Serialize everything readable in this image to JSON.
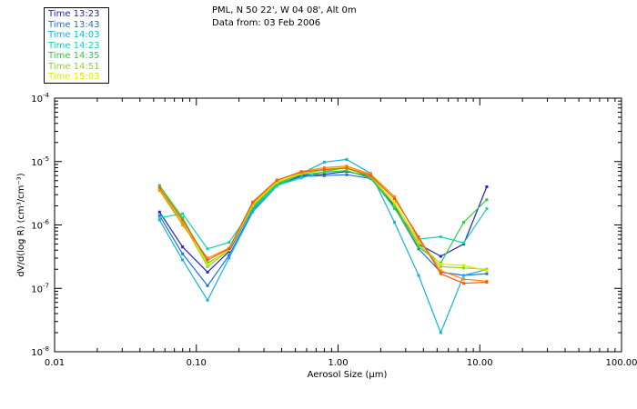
{
  "header": {
    "location": "PML, N 50 22', W 04 08', Alt 0m",
    "date": "Data from: 03 Feb 2006"
  },
  "chart_data": {
    "type": "line",
    "title": "PML, N 50 22', W 04 08', Alt 0m",
    "xlabel": "Aerosol Size (μm)",
    "ylabel": "dV/d(log R) (cm³/cm⁻³)",
    "xscale": "log",
    "yscale": "log",
    "xlim": [
      0.01,
      100.0
    ],
    "ylim": [
      1e-08,
      0.0001
    ],
    "x_ticks": [
      {
        "value": 0.01,
        "label": "0.01"
      },
      {
        "value": 0.1,
        "label": "0.10"
      },
      {
        "value": 1,
        "label": "1.00"
      },
      {
        "value": 10,
        "label": "10.00"
      },
      {
        "value": 100,
        "label": "100.00"
      }
    ],
    "y_ticks": [
      {
        "value": 1e-08,
        "base": "10",
        "exp": "-8"
      },
      {
        "value": 1e-07,
        "base": "10",
        "exp": "-7"
      },
      {
        "value": 1e-06,
        "base": "10",
        "exp": "-6"
      },
      {
        "value": 1e-05,
        "base": "10",
        "exp": "-5"
      },
      {
        "value": 0.0001,
        "base": "10",
        "exp": "-4"
      }
    ],
    "legend_position": "top-left, outside plot",
    "x": [
      0.055,
      0.08,
      0.12,
      0.17,
      0.25,
      0.37,
      0.55,
      0.8,
      1.15,
      1.7,
      2.5,
      3.7,
      5.3,
      7.7,
      11.2
    ],
    "series": [
      {
        "name": "Time 13:23",
        "color": "#2222cc",
        "values": [
          1.6e-06,
          4.5e-07,
          1.8e-07,
          3.8e-07,
          1.9e-06,
          4.5e-06,
          6e-06,
          6.3e-06,
          7e-06,
          5.8e-06,
          2e-06,
          5e-07,
          3.2e-07,
          5e-07,
          4e-06
        ]
      },
      {
        "name": "Time 13:43",
        "color": "#1e6fdc",
        "values": [
          1.4e-06,
          3.5e-07,
          1.1e-07,
          3.3e-07,
          1.7e-06,
          4.3e-06,
          5.8e-06,
          6e-06,
          6.2e-06,
          5.4e-06,
          1.9e-06,
          4.2e-07,
          1.8e-07,
          1.6e-07,
          1.7e-07
        ]
      },
      {
        "name": "Time 14:03",
        "color": "#10b4dc",
        "values": [
          1.2e-06,
          2.8e-07,
          6.5e-08,
          3e-07,
          1.6e-06,
          4.1e-06,
          6.5e-06,
          9.8e-06,
          1.08e-05,
          6.5e-06,
          1.1e-06,
          1.6e-07,
          2e-08,
          1.6e-07,
          2e-07
        ]
      },
      {
        "name": "Time 14:23",
        "color": "#10d2b4",
        "values": [
          1.3e-06,
          1.5e-06,
          4.2e-07,
          5.3e-07,
          1.8e-06,
          4.2e-06,
          5.5e-06,
          7e-06,
          8e-06,
          6e-06,
          1.8e-06,
          6e-07,
          6.5e-07,
          5.2e-07,
          1.8e-06
        ]
      },
      {
        "name": "Time 14:35",
        "color": "#28d23c",
        "values": [
          4.2e-06,
          1.3e-06,
          2.5e-07,
          4e-07,
          1.9e-06,
          4.4e-06,
          6.2e-06,
          6.8e-06,
          7.2e-06,
          5.5e-06,
          1.9e-06,
          4.5e-07,
          2.5e-07,
          1.1e-06,
          2.5e-06
        ]
      },
      {
        "name": "Time 14:51",
        "color": "#96d21e",
        "values": [
          3.6e-06,
          1.1e-06,
          2.2e-07,
          4e-07,
          2e-06,
          4.6e-06,
          6.4e-06,
          7.4e-06,
          7.8e-06,
          5.8e-06,
          2.1e-06,
          5e-07,
          2.2e-07,
          2.1e-07,
          2e-07
        ]
      },
      {
        "name": "Time 15:03",
        "color": "#e6e600",
        "values": [
          3.8e-06,
          1.2e-06,
          2.4e-07,
          4.1e-07,
          2.1e-06,
          4.8e-06,
          6.6e-06,
          7.6e-06,
          8.2e-06,
          6.1e-06,
          2.3e-06,
          5.5e-07,
          2.4e-07,
          2.3e-07,
          1.9e-07
        ]
      },
      {
        "name": "",
        "color": "#ff8c00",
        "values": [
          3.5e-06,
          1e-06,
          3e-07,
          4.3e-07,
          2.2e-06,
          5e-06,
          7e-06,
          8e-06,
          8.5e-06,
          6.3e-06,
          2.8e-06,
          6e-07,
          1.9e-07,
          1.4e-07,
          1.3e-07
        ]
      },
      {
        "name": "",
        "color": "#f05a14",
        "values": [
          3.9e-06,
          1.2e-06,
          2.8e-07,
          4.2e-07,
          2.3e-06,
          5.1e-06,
          6.8e-06,
          7.5e-06,
          7.9e-06,
          6e-06,
          2.6e-06,
          6.5e-07,
          1.7e-07,
          1.2e-07,
          1.25e-07
        ]
      }
    ]
  }
}
